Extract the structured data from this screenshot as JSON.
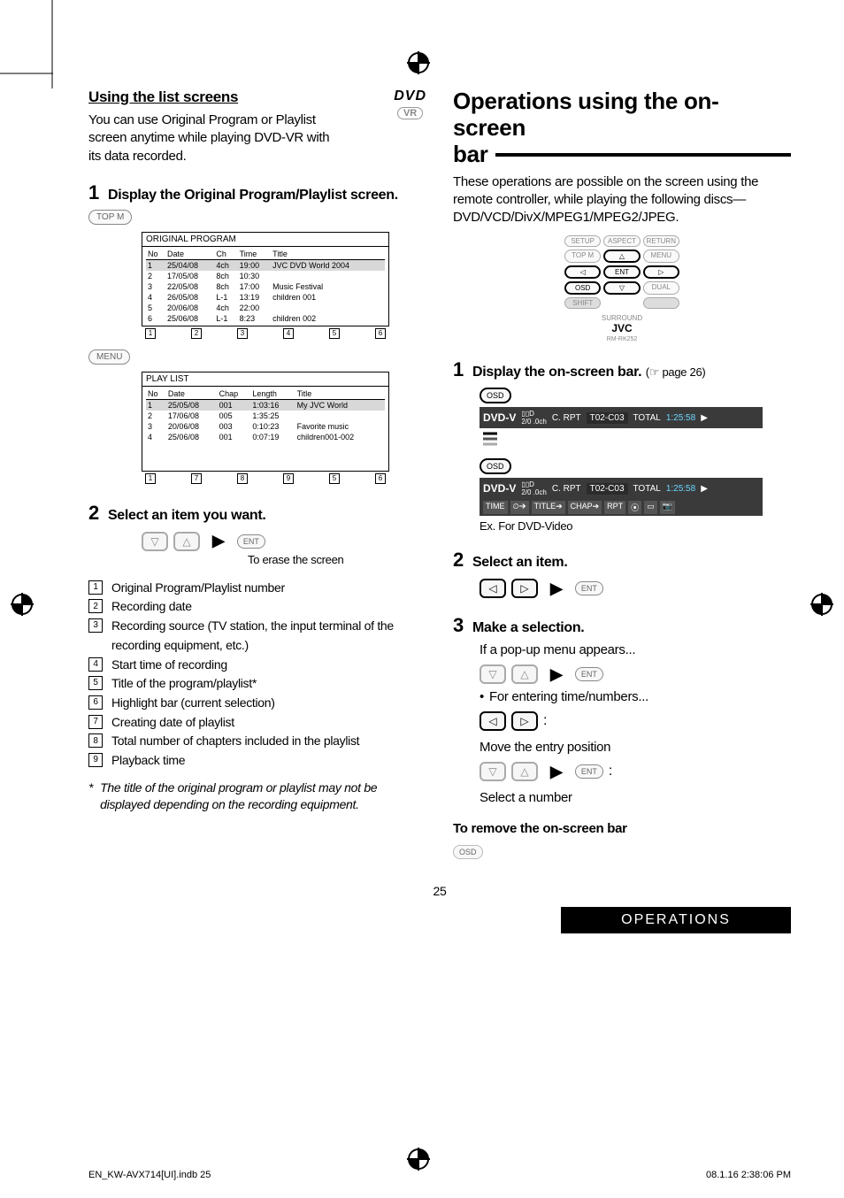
{
  "left": {
    "dvd_logo": "DVD",
    "vr_badge": "VR",
    "heading": "Using the list screens",
    "intro": "You can use Original Program or Playlist screen anytime while playing DVD-VR with its data recorded.",
    "step1_num": "1",
    "step1_text": "Display the Original Program/Playlist screen.",
    "topm": "TOP M",
    "menu": "MENU",
    "orig_title": "ORIGINAL PROGRAM",
    "orig_cols": {
      "no": "No",
      "date": "Date",
      "ch": "Ch",
      "time": "Time",
      "title": "Title"
    },
    "orig_rows": [
      {
        "no": "1",
        "date": "25/04/08",
        "ch": "4ch",
        "time": "19:00",
        "title": "JVC DVD World 2004",
        "hl": true
      },
      {
        "no": "2",
        "date": "17/05/08",
        "ch": "8ch",
        "time": "10:30",
        "title": ""
      },
      {
        "no": "3",
        "date": "22/05/08",
        "ch": "8ch",
        "time": "17:00",
        "title": "Music Festival"
      },
      {
        "no": "4",
        "date": "26/05/08",
        "ch": "L-1",
        "time": "13:19",
        "title": "children 001"
      },
      {
        "no": "5",
        "date": "20/06/08",
        "ch": "4ch",
        "time": "22:00",
        "title": ""
      },
      {
        "no": "6",
        "date": "25/06/08",
        "ch": "L-1",
        "time": "8:23",
        "title": "children 002"
      }
    ],
    "orig_callouts": [
      "1",
      "2",
      "3",
      "4",
      "5",
      "6"
    ],
    "pl_title": "PLAY LIST",
    "pl_cols": {
      "no": "No",
      "date": "Date",
      "chap": "Chap",
      "length": "Length",
      "title": "Title"
    },
    "pl_rows": [
      {
        "no": "1",
        "date": "25/05/08",
        "chap": "001",
        "length": "1:03:16",
        "title": "My JVC World",
        "hl": true
      },
      {
        "no": "2",
        "date": "17/06/08",
        "chap": "005",
        "length": "1:35:25",
        "title": ""
      },
      {
        "no": "3",
        "date": "20/06/08",
        "chap": "003",
        "length": "0:10:23",
        "title": "Favorite music"
      },
      {
        "no": "4",
        "date": "25/06/08",
        "chap": "001",
        "length": "0:07:19",
        "title": "children001-002"
      }
    ],
    "pl_callouts": [
      "1",
      "7",
      "8",
      "9",
      "5",
      "6"
    ],
    "step2_num": "2",
    "step2_text": "Select an item you want.",
    "ent": "ENT",
    "erase_caption": "To erase the screen",
    "legend": [
      "Original Program/Playlist number",
      "Recording date",
      "Recording source (TV station, the input terminal of the recording equipment, etc.)",
      "Start time of recording",
      "Title of the program/playlist*",
      "Highlight bar (current selection)",
      "Creating date of playlist",
      "Total number of chapters included in the playlist",
      "Playback time"
    ],
    "footnote_mark": "*",
    "footnote": "The title of the original program or playlist may not be displayed depending on the recording equipment."
  },
  "right": {
    "title_line1": "Operations using the on-screen",
    "title_line2": "bar",
    "intro": "These operations are possible on the screen using the remote controller, while playing the following discs—DVD/VCD/DivX/MPEG1/MPEG2/JPEG.",
    "remote": {
      "setup": "SETUP",
      "aspect": "ASPECT",
      "return": "RETURN",
      "topm": "TOP M",
      "up": "△",
      "menu": "MENU",
      "left": "◁",
      "ent": "ENT",
      "right": "▷",
      "osd": "OSD",
      "down": "▽",
      "dual": "DUAL",
      "shift": "SHIFT",
      "direct": "",
      "surround": "SURROUND",
      "brand": "JVC",
      "model": "RM-RK252"
    },
    "step1_num": "1",
    "step1_text": "Display the on-screen bar.",
    "step1_ref": "(☞ page 26)",
    "osd_btn": "OSD",
    "osd_bar": {
      "label": "DVD-V",
      "dd": "▯▯D",
      "ch": "2/0 .0ch",
      "crpt": "C. RPT",
      "tc": "T02-C03",
      "total": "TOTAL",
      "time": "1:25:58",
      "play": "▶"
    },
    "osd_bar2": {
      "time": "TIME",
      "clock": "⏲➔",
      "title": "TITLE➔",
      "chap": "CHAP➔",
      "rpt": "RPT",
      "disc": "⦿",
      "rect": "▭",
      "cam": "📷"
    },
    "ex_caption": "Ex. For DVD-Video",
    "step2_num": "2",
    "step2_text": "Select an item.",
    "step3_num": "3",
    "step3_text": "Make a selection.",
    "popup_text": "If a pop-up menu appears...",
    "entering_text": "For entering time/numbers...",
    "move_text": "Move the entry position",
    "select_text": "Select a number",
    "remove_heading": "To remove the on-screen bar",
    "nav": {
      "down": "▽",
      "up": "△",
      "left": "◁",
      "right": "▷"
    },
    "colon": ":"
  },
  "footer": {
    "page_num": "25",
    "ops": "OPERATIONS",
    "left": "EN_KW-AVX714[UI].indb   25",
    "right": "08.1.16   2:38:06 PM"
  }
}
